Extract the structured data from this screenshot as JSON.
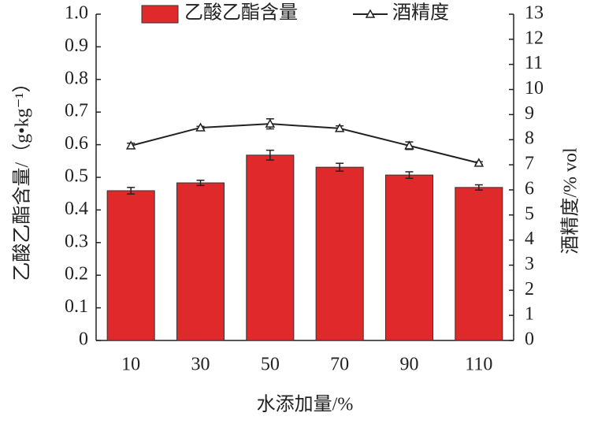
{
  "chart_data": {
    "type": "bar",
    "x_label": "水添加量/%",
    "y_label": "乙酸乙酯含量/（g•kg⁻¹）",
    "y2_label": "酒精度/% vol",
    "categories": [
      "10",
      "30",
      "50",
      "70",
      "90",
      "110"
    ],
    "series": [
      {
        "name": "乙酸乙酯含量",
        "type": "bar",
        "color": "#e0292b",
        "values": [
          0.459,
          0.483,
          0.568,
          0.531,
          0.507,
          0.469
        ],
        "errors": [
          0.01,
          0.008,
          0.015,
          0.012,
          0.01,
          0.008
        ]
      },
      {
        "name": "酒精度",
        "type": "line",
        "axis": "y2",
        "color": "#222222",
        "values": [
          7.76,
          8.48,
          8.63,
          8.45,
          7.76,
          7.07
        ],
        "errors": [
          0.1,
          0.05,
          0.2,
          0.1,
          0.15,
          0.05
        ]
      }
    ],
    "ylim": [
      0,
      1
    ],
    "yticks": [
      0,
      0.1,
      0.2,
      0.3,
      0.4,
      0.5,
      0.6,
      0.7,
      0.8,
      0.9,
      {
        "value": 1,
        "label": "1.0"
      }
    ],
    "y2lim": [
      0,
      13
    ],
    "y2ticks": [
      0,
      1,
      2,
      3,
      4,
      5,
      6,
      7,
      8,
      9,
      10,
      11,
      12,
      13
    ],
    "legend": "top"
  }
}
